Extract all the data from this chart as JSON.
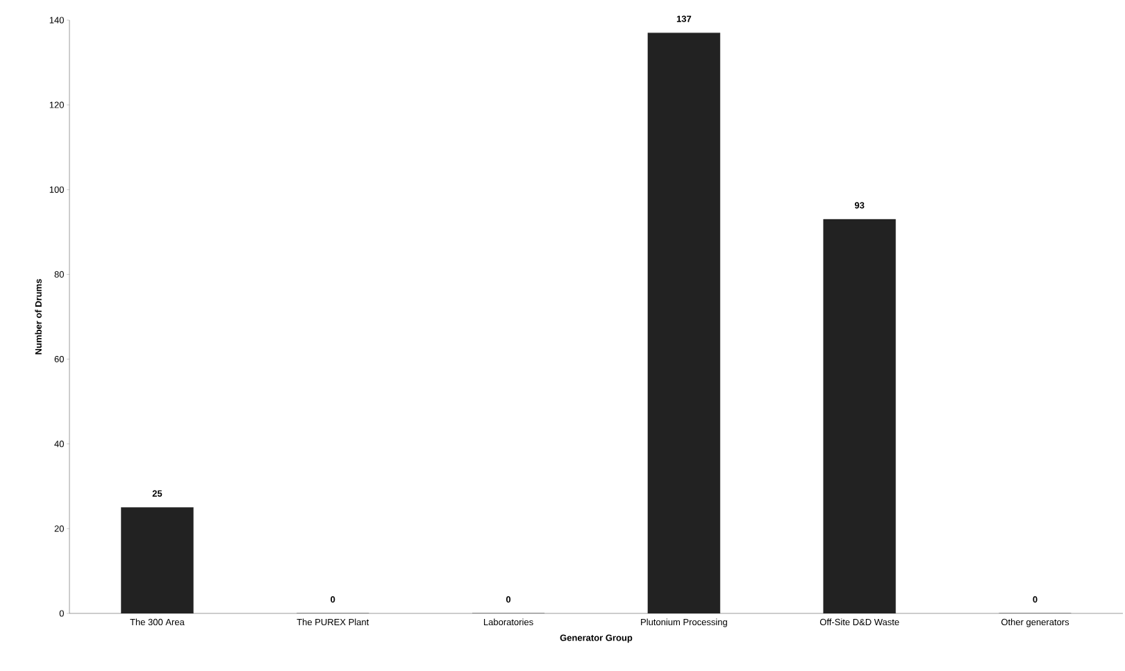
{
  "chart_data": {
    "type": "bar",
    "xlabel": "Generator Group",
    "ylabel": "Number of Drums",
    "categories": [
      "The 300 Area",
      "The PUREX Plant",
      "Laboratories",
      "Plutonium Processing",
      "Off-Site D&D Waste",
      "Other generators"
    ],
    "values": [
      25,
      0,
      0,
      137,
      93,
      0
    ],
    "color": "#222222",
    "ylim": [
      0,
      140
    ],
    "yticks": [
      0,
      20,
      40,
      60,
      80,
      100,
      120,
      140
    ],
    "data_labels": true,
    "grid": false
  }
}
